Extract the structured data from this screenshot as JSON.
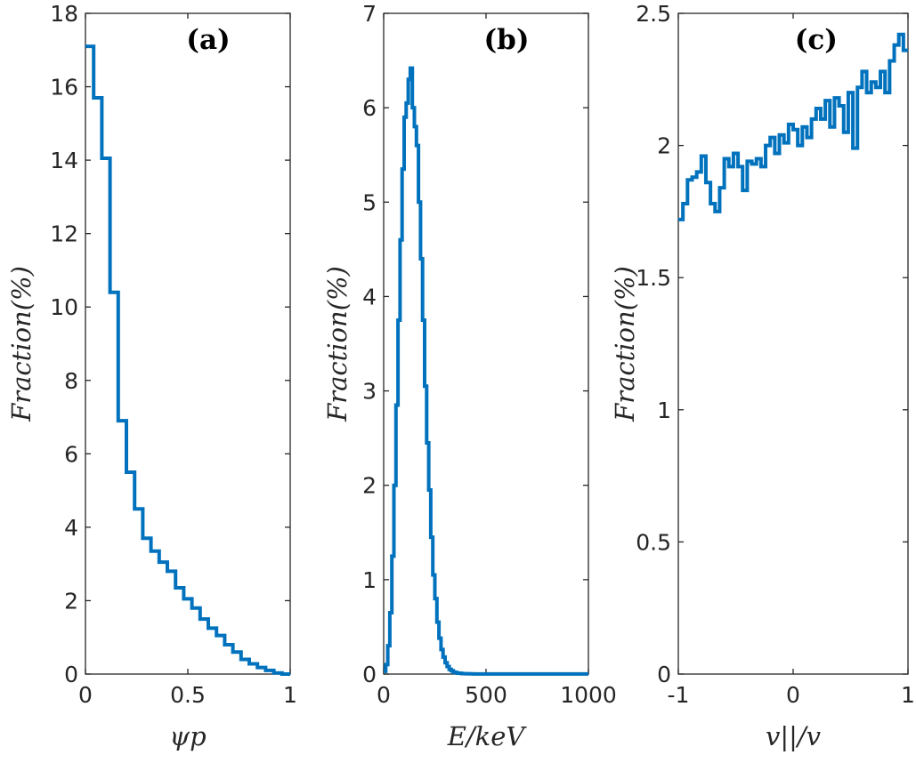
{
  "chart_data": [
    {
      "type": "line",
      "panel_label": "(a)",
      "xlabel": "ψp",
      "ylabel": "Fraction(%)",
      "xlim": [
        0,
        1
      ],
      "ylim": [
        0,
        18
      ],
      "xticks": [
        0,
        0.5,
        1
      ],
      "xtick_labels": [
        "0",
        "0.5",
        "1"
      ],
      "yticks": [
        0,
        2,
        4,
        6,
        8,
        10,
        12,
        14,
        16,
        18
      ],
      "ytick_labels": [
        "0",
        "2",
        "4",
        "6",
        "8",
        "10",
        "12",
        "14",
        "16",
        "18"
      ],
      "color": "#0072BD",
      "bin_edges": [
        0,
        0.04,
        0.08,
        0.12,
        0.16,
        0.2,
        0.24,
        0.28,
        0.32,
        0.36,
        0.4,
        0.44,
        0.48,
        0.52,
        0.56,
        0.6,
        0.64,
        0.68,
        0.72,
        0.76,
        0.8,
        0.84,
        0.88,
        0.92,
        0.96,
        1.0
      ],
      "values": [
        17.1,
        15.7,
        14.05,
        10.4,
        6.9,
        5.5,
        4.5,
        3.7,
        3.35,
        3.05,
        2.8,
        2.35,
        2.05,
        1.8,
        1.5,
        1.25,
        1.05,
        0.8,
        0.6,
        0.4,
        0.28,
        0.18,
        0.1,
        0.03,
        0.0
      ]
    },
    {
      "type": "line",
      "panel_label": "(b)",
      "xlabel": "E/keV",
      "ylabel": "Fraction(%)",
      "xlim": [
        0,
        1000
      ],
      "ylim": [
        0,
        7
      ],
      "xticks": [
        0,
        500,
        1000
      ],
      "xtick_labels": [
        "0",
        "500",
        "1000"
      ],
      "yticks": [
        0,
        1,
        2,
        3,
        4,
        5,
        6,
        7
      ],
      "ytick_labels": [
        "0",
        "1",
        "2",
        "3",
        "4",
        "5",
        "6",
        "7"
      ],
      "color": "#0072BD",
      "x": [
        0,
        10,
        20,
        30,
        40,
        50,
        60,
        70,
        80,
        90,
        100,
        110,
        120,
        130,
        140,
        150,
        160,
        170,
        180,
        190,
        200,
        210,
        220,
        230,
        240,
        250,
        260,
        270,
        280,
        290,
        300,
        310,
        320,
        330,
        340,
        350,
        360,
        370,
        380,
        390,
        400,
        410,
        420,
        430,
        440,
        450,
        460,
        470,
        480,
        490,
        500,
        520,
        540,
        560,
        580,
        600,
        620,
        640,
        660,
        680,
        700,
        800,
        900,
        1000
      ],
      "values": [
        0.03,
        0.1,
        0.3,
        0.65,
        1.25,
        2.0,
        2.85,
        3.75,
        4.6,
        5.35,
        5.9,
        6.05,
        6.3,
        6.42,
        6.0,
        5.8,
        5.6,
        5.0,
        4.4,
        3.75,
        3.05,
        2.45,
        1.95,
        1.45,
        1.05,
        0.8,
        0.55,
        0.38,
        0.26,
        0.18,
        0.12,
        0.08,
        0.05,
        0.035,
        0.02,
        0.015,
        0.01,
        0.01,
        0.005,
        0.005,
        0.003,
        0.003,
        0.002,
        0.002,
        0.001,
        0.001,
        0.001,
        0.001,
        0.001,
        0.001,
        0.001,
        0.001,
        0.001,
        0.001,
        0.001,
        0.001,
        0.001,
        0.001,
        0.001,
        0.001,
        0.001,
        0.001,
        0.001,
        0.001
      ]
    },
    {
      "type": "line",
      "panel_label": "(c)",
      "xlabel": "v||/v",
      "ylabel": "Fraction(%)",
      "xlim": [
        -1,
        1
      ],
      "ylim": [
        0,
        2.5
      ],
      "xticks": [
        -1,
        0,
        1
      ],
      "xtick_labels": [
        "-1",
        "0",
        "1"
      ],
      "yticks": [
        0,
        0.5,
        1,
        1.5,
        2,
        2.5
      ],
      "ytick_labels": [
        "0",
        "0.5",
        "1",
        "1.5",
        "2",
        "2.5"
      ],
      "color": "#0072BD",
      "x": [
        -1.0,
        -0.96,
        -0.92,
        -0.88,
        -0.84,
        -0.8,
        -0.76,
        -0.72,
        -0.68,
        -0.64,
        -0.6,
        -0.56,
        -0.52,
        -0.48,
        -0.44,
        -0.4,
        -0.36,
        -0.32,
        -0.28,
        -0.24,
        -0.2,
        -0.16,
        -0.12,
        -0.08,
        -0.04,
        0.0,
        0.04,
        0.08,
        0.12,
        0.16,
        0.2,
        0.24,
        0.28,
        0.32,
        0.36,
        0.4,
        0.44,
        0.48,
        0.52,
        0.56,
        0.6,
        0.64,
        0.68,
        0.72,
        0.76,
        0.8,
        0.84,
        0.88,
        0.92,
        0.96
      ],
      "values": [
        1.72,
        1.78,
        1.87,
        1.88,
        1.9,
        1.96,
        1.86,
        1.78,
        1.75,
        1.84,
        1.95,
        1.92,
        1.97,
        1.92,
        1.83,
        1.94,
        1.93,
        1.95,
        1.92,
        2.0,
        2.03,
        1.97,
        2.04,
        2.01,
        2.08,
        2.06,
        2.0,
        2.07,
        2.03,
        2.1,
        2.14,
        2.1,
        2.17,
        2.07,
        2.18,
        2.15,
        2.05,
        2.2,
        1.99,
        2.22,
        2.28,
        2.2,
        2.24,
        2.22,
        2.28,
        2.2,
        2.32,
        2.38,
        2.42,
        2.36
      ]
    }
  ]
}
